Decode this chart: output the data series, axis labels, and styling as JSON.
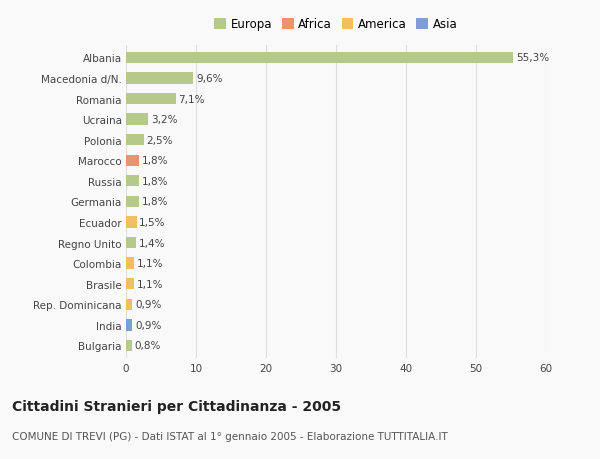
{
  "categories": [
    "Albania",
    "Macedonia d/N.",
    "Romania",
    "Ucraina",
    "Polonia",
    "Marocco",
    "Russia",
    "Germania",
    "Ecuador",
    "Regno Unito",
    "Colombia",
    "Brasile",
    "Rep. Dominicana",
    "India",
    "Bulgaria"
  ],
  "values": [
    55.3,
    9.6,
    7.1,
    3.2,
    2.5,
    1.8,
    1.8,
    1.8,
    1.5,
    1.4,
    1.1,
    1.1,
    0.9,
    0.9,
    0.8
  ],
  "labels": [
    "55,3%",
    "9,6%",
    "7,1%",
    "3,2%",
    "2,5%",
    "1,8%",
    "1,8%",
    "1,8%",
    "1,5%",
    "1,4%",
    "1,1%",
    "1,1%",
    "0,9%",
    "0,9%",
    "0,8%"
  ],
  "bar_colors": [
    "#b5c98a",
    "#b5c98a",
    "#b5c98a",
    "#b5c98a",
    "#b5c98a",
    "#e8956d",
    "#b5c98a",
    "#b5c98a",
    "#f0c060",
    "#b5c98a",
    "#f0c060",
    "#f0c060",
    "#f0c060",
    "#7b9fd4",
    "#b5c98a"
  ],
  "legend_labels": [
    "Europa",
    "Africa",
    "America",
    "Asia"
  ],
  "legend_colors": [
    "#b5c98a",
    "#e8956d",
    "#f0c060",
    "#7b9fd4"
  ],
  "title": "Cittadini Stranieri per Cittadinanza - 2005",
  "subtitle": "COMUNE DI TREVI (PG) - Dati ISTAT al 1° gennaio 2005 - Elaborazione TUTTITALIA.IT",
  "xlim": [
    0,
    60
  ],
  "xticks": [
    0,
    10,
    20,
    30,
    40,
    50,
    60
  ],
  "background_color": "#f9f9f9",
  "grid_color": "#dddddd",
  "bar_height": 0.55,
  "label_fontsize": 7.5,
  "title_fontsize": 10,
  "subtitle_fontsize": 7.5,
  "tick_fontsize": 7.5
}
